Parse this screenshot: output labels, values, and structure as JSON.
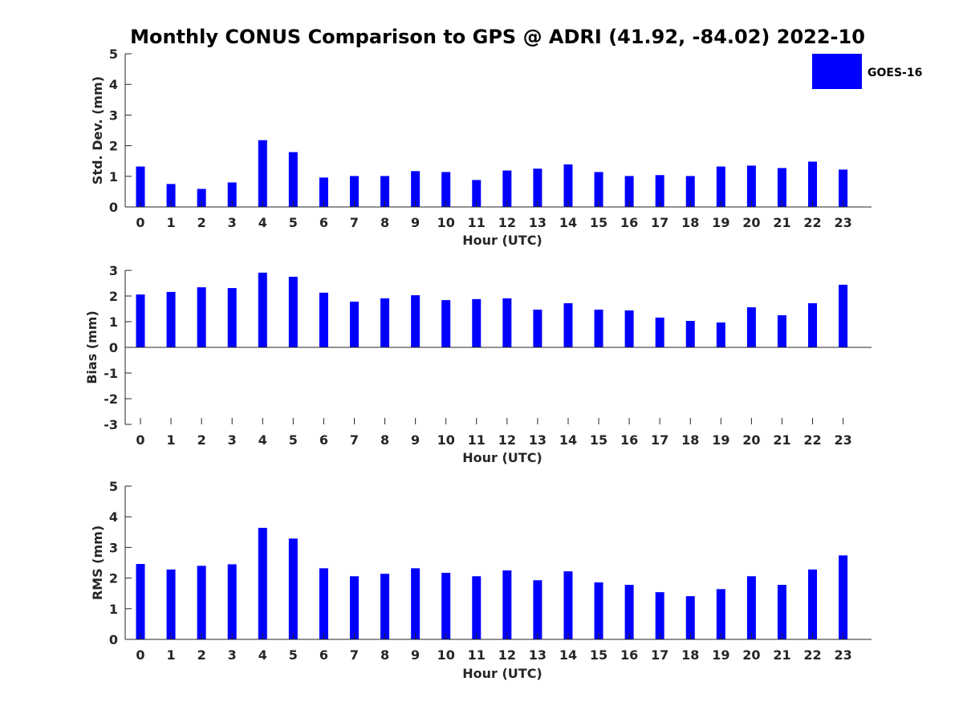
{
  "title": "Monthly CONUS Comparison to GPS @ ADRI (41.92, -84.02) 2022-10",
  "legend": {
    "label": "GOES-16",
    "color": "#0000ff",
    "placement": "top-right"
  },
  "chart_data": [
    {
      "type": "bar",
      "xlabel": "Hour (UTC)",
      "ylabel": "Std. Dev. (mm)",
      "ylim": [
        0,
        5
      ],
      "yticks": [
        "0",
        "1",
        "2",
        "3",
        "4",
        "5"
      ],
      "categories": [
        "0",
        "1",
        "2",
        "3",
        "4",
        "5",
        "6",
        "7",
        "8",
        "9",
        "10",
        "11",
        "12",
        "13",
        "14",
        "15",
        "16",
        "17",
        "18",
        "19",
        "20",
        "21",
        "22",
        "23"
      ],
      "series": [
        {
          "name": "GOES-16",
          "color": "#0000ff",
          "values": [
            1.32,
            0.75,
            0.59,
            0.8,
            2.18,
            1.79,
            0.96,
            1.01,
            1.01,
            1.17,
            1.14,
            0.88,
            1.19,
            1.25,
            1.39,
            1.14,
            1.01,
            1.04,
            1.01,
            1.32,
            1.35,
            1.27,
            1.48,
            1.22
          ]
        }
      ]
    },
    {
      "type": "bar",
      "xlabel": "Hour (UTC)",
      "ylabel": "Bias (mm)",
      "ylim": [
        -3,
        3
      ],
      "yticks": [
        "-3",
        "-2",
        "-1",
        "0",
        "1",
        "2",
        "3"
      ],
      "categories": [
        "0",
        "1",
        "2",
        "3",
        "4",
        "5",
        "6",
        "7",
        "8",
        "9",
        "10",
        "11",
        "12",
        "13",
        "14",
        "15",
        "16",
        "17",
        "18",
        "19",
        "20",
        "21",
        "22",
        "23"
      ],
      "series": [
        {
          "name": "GOES-16",
          "color": "#0000ff",
          "values": [
            2.06,
            2.16,
            2.34,
            2.31,
            2.91,
            2.75,
            2.13,
            1.78,
            1.91,
            2.03,
            1.84,
            1.88,
            1.91,
            1.47,
            1.72,
            1.47,
            1.44,
            1.16,
            1.03,
            0.97,
            1.56,
            1.25,
            1.72,
            2.44
          ]
        }
      ]
    },
    {
      "type": "bar",
      "xlabel": "Hour (UTC)",
      "ylabel": "RMS (mm)",
      "ylim": [
        0,
        5
      ],
      "yticks": [
        "0",
        "1",
        "2",
        "3",
        "4",
        "5"
      ],
      "categories": [
        "0",
        "1",
        "2",
        "3",
        "4",
        "5",
        "6",
        "7",
        "8",
        "9",
        "10",
        "11",
        "12",
        "13",
        "14",
        "15",
        "16",
        "17",
        "18",
        "19",
        "20",
        "21",
        "22",
        "23"
      ],
      "series": [
        {
          "name": "GOES-16",
          "color": "#0000ff",
          "values": [
            2.46,
            2.28,
            2.4,
            2.45,
            3.64,
            3.29,
            2.32,
            2.06,
            2.14,
            2.32,
            2.17,
            2.06,
            2.25,
            1.93,
            2.22,
            1.86,
            1.78,
            1.54,
            1.41,
            1.64,
            2.06,
            1.78,
            2.28,
            2.74
          ]
        }
      ]
    }
  ]
}
